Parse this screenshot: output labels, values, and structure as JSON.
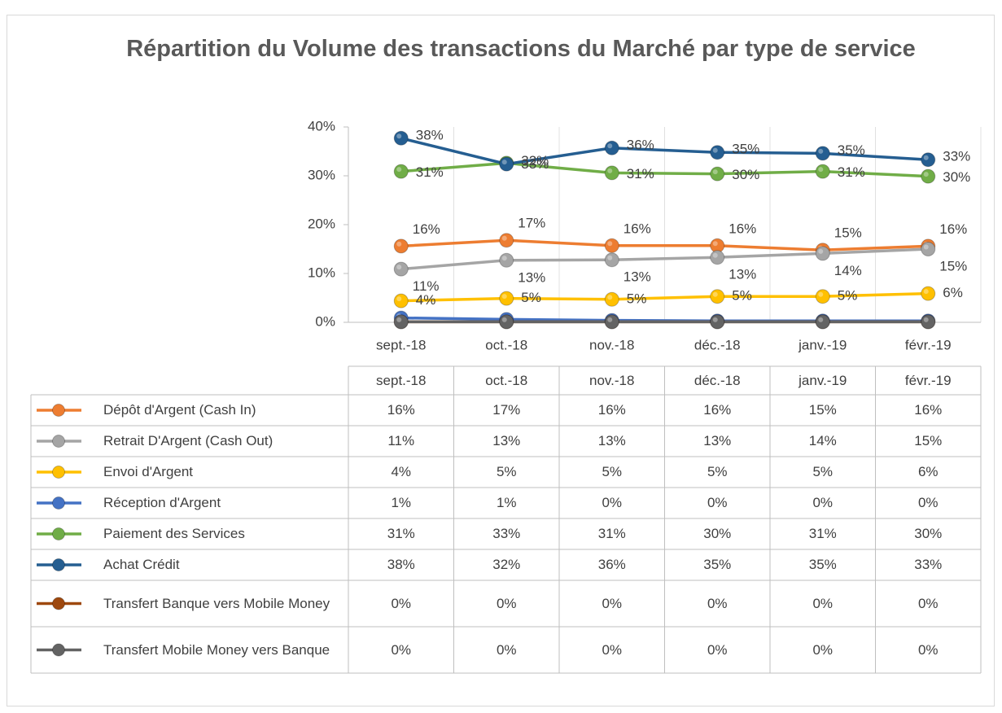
{
  "chart_data": {
    "type": "line",
    "title": "Répartition du Volume des transactions du Marché par type de service",
    "categories": [
      "sept.-18",
      "oct.-18",
      "nov.-18",
      "déc.-18",
      "janv.-19",
      "févr.-19"
    ],
    "ylim": [
      0,
      40
    ],
    "yticks": [
      {
        "value": 0,
        "label": "0%"
      },
      {
        "value": 10,
        "label": "10%"
      },
      {
        "value": 20,
        "label": "20%"
      },
      {
        "value": 30,
        "label": "30%"
      },
      {
        "value": 40,
        "label": "40%"
      }
    ],
    "series": [
      {
        "name": "Dépôt d'Argent (Cash In)",
        "color": "#ed7d31",
        "data_labels": true,
        "values": [
          15.6,
          16.8,
          15.7,
          15.7,
          14.8,
          15.6
        ],
        "value_labels": [
          "16%",
          "17%",
          "16%",
          "16%",
          "15%",
          "16%"
        ]
      },
      {
        "name": "Retrait D'Argent (Cash Out)",
        "color": "#a5a5a5",
        "data_labels": true,
        "values": [
          10.9,
          12.7,
          12.8,
          13.3,
          14.1,
          15.0
        ],
        "value_labels": [
          "11%",
          "13%",
          "13%",
          "13%",
          "14%",
          "15%"
        ]
      },
      {
        "name": "Envoi d'Argent",
        "color": "#ffc000",
        "data_labels": true,
        "values": [
          4.4,
          4.9,
          4.7,
          5.3,
          5.3,
          5.9
        ],
        "value_labels": [
          "4%",
          "5%",
          "5%",
          "5%",
          "5%",
          "6%"
        ]
      },
      {
        "name": "Réception d'Argent",
        "color": "#4472c4",
        "data_labels": false,
        "values": [
          0.9,
          0.6,
          0.4,
          0.3,
          0.3,
          0.3
        ],
        "value_labels": [
          "1%",
          "1%",
          "0%",
          "0%",
          "0%",
          "0%"
        ]
      },
      {
        "name": "Paiement des Services",
        "color": "#70ad47",
        "data_labels": true,
        "values": [
          30.9,
          32.6,
          30.6,
          30.4,
          30.9,
          29.9
        ],
        "value_labels": [
          "31%",
          "33%",
          "31%",
          "30%",
          "31%",
          "30%"
        ]
      },
      {
        "name": "Achat Crédit",
        "color": "#255e91",
        "data_labels": true,
        "values": [
          37.7,
          32.4,
          35.7,
          34.8,
          34.6,
          33.3
        ],
        "value_labels": [
          "38%",
          "32%",
          "36%",
          "35%",
          "35%",
          "33%"
        ]
      },
      {
        "name": "Transfert Banque vers Mobile Money",
        "color": "#9e480e",
        "data_labels": false,
        "values": [
          0.1,
          0.1,
          0.1,
          0.1,
          0.1,
          0.1
        ],
        "value_labels": [
          "0%",
          "0%",
          "0%",
          "0%",
          "0%",
          "0%"
        ]
      },
      {
        "name": "Transfert  Mobile Money vers Banque",
        "color": "#636363",
        "data_labels": false,
        "values": [
          0.1,
          0.1,
          0.1,
          0.1,
          0.1,
          0.1
        ],
        "value_labels": [
          "0%",
          "0%",
          "0%",
          "0%",
          "0%",
          "0%"
        ]
      }
    ]
  }
}
